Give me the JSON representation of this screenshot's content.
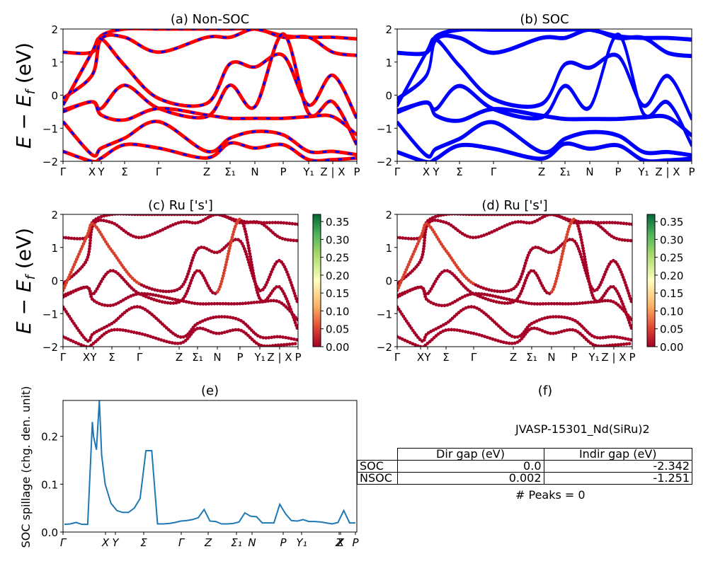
{
  "figure": {
    "material_label": "JVASP-15301_Nd(SiRu)2",
    "peaks_label": "# Peaks = 0",
    "colors": {
      "nonsoc_red": "#ff0000",
      "soc_blue": "#0000ff",
      "spillage_line": "#1f77b4"
    }
  },
  "gap_table": {
    "headers": [
      "",
      "Dir gap (eV)",
      "Indir gap (eV)"
    ],
    "rows": [
      {
        "label": "SOC",
        "dir": "0.0",
        "indir": "-2.342"
      },
      {
        "label": "NSOC",
        "dir": "0.002",
        "indir": "-1.251"
      }
    ]
  },
  "chart_data": [
    {
      "id": "a",
      "type": "line",
      "title": "(a) Non-SOC",
      "ylabel": "E − E_f (eV)",
      "ylim": [
        -2,
        2
      ],
      "yticks": [
        "2",
        "1",
        "0",
        "−1",
        "−2"
      ],
      "xtick_labels": [
        "Γ",
        "X",
        "Y",
        "Σ",
        "Γ",
        "Z",
        "Σ₁",
        "N",
        "P",
        "Y₁",
        "Z | X",
        "P"
      ],
      "series_style": "red with blue dashes (non-SOC overlaid by SOC)",
      "bands_note": "approximate energies (eV) sampled at 12 path points",
      "bands": [
        [
          1.3,
          1.3,
          1.8,
          2.0,
          2.0,
          2.0,
          2.0,
          2.0,
          1.8,
          1.75,
          1.75,
          1.7
        ],
        [
          -0.1,
          0.6,
          1.7,
          1.75,
          1.3,
          1.75,
          1.75,
          2.0,
          1.75,
          1.75,
          1.3,
          1.2
        ],
        [
          -0.3,
          1.3,
          1.7,
          0.9,
          -0.1,
          -0.25,
          0.95,
          0.85,
          1.2,
          -0.3,
          0.6,
          -0.7
        ],
        [
          -0.45,
          -0.2,
          -0.4,
          0.3,
          -0.4,
          -0.65,
          0.3,
          -0.35,
          1.85,
          -0.55,
          -0.2,
          -1.5
        ],
        [
          -0.5,
          -0.2,
          -0.6,
          -0.75,
          -0.4,
          -0.6,
          -0.7,
          -0.7,
          -0.7,
          -0.65,
          -0.65,
          -1.2
        ],
        [
          -0.8,
          -1.8,
          -1.6,
          -1.3,
          -0.8,
          -1.7,
          -1.3,
          -1.1,
          -1.2,
          -1.7,
          -1.7,
          -1.8
        ],
        [
          -1.7,
          -2.0,
          -1.9,
          -1.5,
          -1.6,
          -1.9,
          -1.45,
          -1.6,
          -1.5,
          -1.95,
          -1.95,
          -1.9
        ]
      ]
    },
    {
      "id": "b",
      "type": "line",
      "title": "(b) SOC",
      "ylim": [
        -2,
        2
      ],
      "yticks": [
        "2",
        "1",
        "0",
        "−1",
        "−2"
      ],
      "xtick_labels": [
        "Γ",
        "X",
        "Y",
        "Σ",
        "Γ",
        "Z",
        "Σ₁",
        "N",
        "P",
        "Y₁",
        "Z | X",
        "P"
      ],
      "series_style": "blue",
      "bands_note": "same band set as (a), SOC-split",
      "bands_ref": "a"
    },
    {
      "id": "c",
      "type": "scatter",
      "title": "(c)  Ru ['s']",
      "ylabel": "E − E_f (eV)",
      "ylim": [
        -2,
        2
      ],
      "yticks": [
        "2",
        "1",
        "0",
        "−1",
        "−2"
      ],
      "xtick_labels": [
        "Γ",
        "X",
        "Y",
        "Σ",
        "Γ",
        "Z",
        "Σ₁",
        "N",
        "P",
        "Y₁",
        "Z | X",
        "P"
      ],
      "colorbar": {
        "cmap": "RdYlGn",
        "range": [
          0.0,
          0.37
        ],
        "ticks": [
          "0.00",
          "0.05",
          "0.10",
          "0.15",
          "0.20",
          "0.25",
          "0.30",
          "0.35"
        ]
      },
      "point_weight_typical": 0.0,
      "bands_ref": "a"
    },
    {
      "id": "d",
      "type": "scatter",
      "title": "(d) Ru ['s']",
      "ylim": [
        -2,
        2
      ],
      "yticks": [
        "2",
        "1",
        "0",
        "−1",
        "−2"
      ],
      "xtick_labels": [
        "Γ",
        "X",
        "Y",
        "Σ",
        "Γ",
        "Z",
        "Σ₁",
        "N",
        "P",
        "Y₁",
        "Z | X",
        "P"
      ],
      "colorbar": {
        "cmap": "RdYlGn",
        "range": [
          0.0,
          0.37
        ],
        "ticks": [
          "0.00",
          "0.05",
          "0.10",
          "0.15",
          "0.20",
          "0.25",
          "0.30",
          "0.35"
        ]
      },
      "bands_ref": "a"
    },
    {
      "id": "e",
      "type": "line",
      "title": "(e)",
      "ylabel": "SOC spillage (chg. den. unit)",
      "ylim": [
        0,
        0.275
      ],
      "yticks": [
        "0.0",
        "0.1",
        "0.2"
      ],
      "xtick_labels": [
        "Γ",
        "X",
        "Y",
        "Σ",
        "Γ",
        "Z",
        "Σ₁",
        "N",
        "P",
        "Y₁",
        "Z",
        "X",
        "P"
      ],
      "x": [
        0,
        2,
        4,
        6,
        8,
        9.6,
        10,
        11,
        12,
        12.8,
        14,
        16,
        18,
        20,
        22,
        24,
        26,
        28,
        30,
        32,
        34,
        36,
        38,
        40,
        42,
        44,
        46,
        48,
        50,
        52,
        54,
        56,
        58,
        60,
        62,
        64,
        66,
        68,
        70,
        72,
        74,
        76,
        78,
        80,
        82,
        84,
        86,
        88,
        90,
        92,
        94,
        96,
        98,
        100
      ],
      "values": [
        0.016,
        0.017,
        0.02,
        0.016,
        0.016,
        0.23,
        0.2,
        0.172,
        0.275,
        0.16,
        0.1,
        0.06,
        0.045,
        0.041,
        0.041,
        0.05,
        0.07,
        0.17,
        0.17,
        0.017,
        0.017,
        0.018,
        0.02,
        0.023,
        0.024,
        0.026,
        0.03,
        0.047,
        0.023,
        0.022,
        0.017,
        0.017,
        0.018,
        0.021,
        0.04,
        0.033,
        0.032,
        0.019,
        0.019,
        0.019,
        0.058,
        0.038,
        0.024,
        0.023,
        0.026,
        0.022,
        0.022,
        0.021,
        0.019,
        0.017,
        0.02,
        0.045,
        0.019,
        0.019
      ]
    }
  ]
}
